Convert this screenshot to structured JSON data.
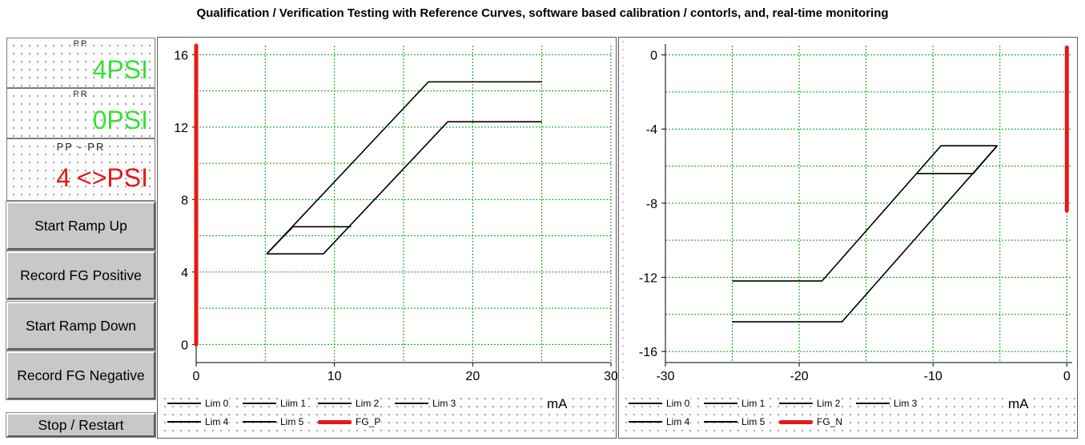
{
  "window": {
    "title": "Qualification / Verification Testing with Reference Curves, software based calibration / contorls, and, real-time monitoring"
  },
  "readouts": [
    {
      "label": "PP",
      "number": "4",
      "unit": "PSI",
      "color": "#33e233"
    },
    {
      "label": "PR",
      "number": "0",
      "unit": "PSI",
      "color": "#33e233"
    },
    {
      "label": "PP - PR",
      "number": "4",
      "unit": "<>PSI",
      "color": "#e81818"
    }
  ],
  "buttons": {
    "ramp_up": "Start Ramp Up",
    "record_pos": "Record FG Positive",
    "ramp_down": "Start Ramp Down",
    "record_neg": "Record FG Negative",
    "stop": "Stop / Restart"
  },
  "chart_data": [
    {
      "type": "line",
      "xlabel": "mA",
      "xlim": [
        0,
        30
      ],
      "ylim": [
        -1,
        16.5
      ],
      "xticks": [
        0,
        10,
        20,
        30
      ],
      "yticks": [
        0,
        4,
        8,
        12,
        16
      ],
      "grid": true,
      "grid_color": "#00a000",
      "series": [
        {
          "name": "Lim 0",
          "color": "#000000",
          "points": [
            [
              5.1,
              5.0
            ],
            [
              7.0,
              6.5
            ],
            [
              11.2,
              6.5
            ]
          ]
        },
        {
          "name": "Liim 1",
          "color": "#000000",
          "points": [
            [
              5.1,
              5.0
            ],
            [
              9.2,
              5.0
            ],
            [
              18.2,
              12.3
            ],
            [
              25.0,
              12.3
            ]
          ]
        },
        {
          "name": "Lim 2",
          "color": "#000000",
          "points": [
            [
              5.1,
              5.0
            ],
            [
              16.8,
              14.5
            ],
            [
              25.0,
              14.5
            ]
          ]
        },
        {
          "name": "Lim 3",
          "color": "#000000",
          "points": []
        },
        {
          "name": "Lim 4",
          "color": "#000000",
          "points": []
        },
        {
          "name": "Lim 5",
          "color": "#000000",
          "points": []
        },
        {
          "name": "FG_P",
          "color": "#e81818",
          "points": [
            [
              0,
              0
            ],
            [
              0,
              16.5
            ]
          ]
        }
      ]
    },
    {
      "type": "line",
      "xlabel": "mA",
      "xlim": [
        -30,
        0.4
      ],
      "ylim": [
        -16.6,
        0.5
      ],
      "xticks": [
        -30,
        -20,
        -10,
        0
      ],
      "yticks": [
        0,
        -4,
        -8,
        -12,
        -16
      ],
      "grid": true,
      "grid_color": "#00a000",
      "series": [
        {
          "name": "Lim 0",
          "color": "#000000",
          "points": [
            [
              -25.0,
              -12.2
            ],
            [
              -18.3,
              -12.2
            ],
            [
              -9.4,
              -4.9
            ],
            [
              -5.2,
              -4.9
            ]
          ]
        },
        {
          "name": "Lim 1",
          "color": "#000000",
          "points": [
            [
              -25.0,
              -14.4
            ],
            [
              -16.8,
              -14.4
            ],
            [
              -5.2,
              -4.9
            ]
          ]
        },
        {
          "name": "Lim 2",
          "color": "#000000",
          "points": [
            [
              -11.2,
              -6.4
            ],
            [
              -7.0,
              -6.4
            ],
            [
              -5.2,
              -4.9
            ]
          ]
        },
        {
          "name": "Lim 3",
          "color": "#000000",
          "points": []
        },
        {
          "name": "Lim 4",
          "color": "#000000",
          "points": []
        },
        {
          "name": "Lim 5",
          "color": "#000000",
          "points": []
        },
        {
          "name": "FG_N",
          "color": "#e81818",
          "points": [
            [
              0,
              0.4
            ],
            [
              0,
              -8.4
            ]
          ]
        }
      ]
    }
  ]
}
